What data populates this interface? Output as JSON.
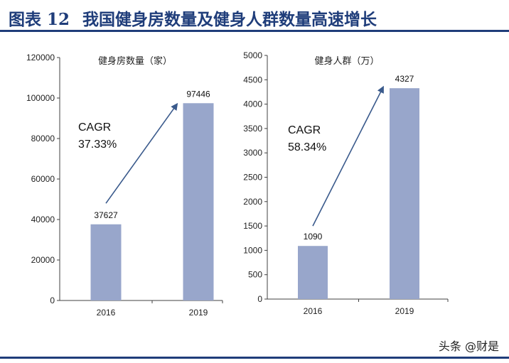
{
  "header": {
    "figure_label": "图表 12",
    "title": "我国健身房数量及健身人群数量高速增长"
  },
  "watermark": "头条 @财是",
  "colors": {
    "bar": "#98a6cb",
    "arrow": "#3a5a8c",
    "title_rule": "#1f3d7a",
    "axis": "#404040"
  },
  "chart_data": [
    {
      "type": "bar",
      "title": "健身房数量（家）",
      "categories": [
        "2016",
        "2019"
      ],
      "values": [
        37627,
        97446
      ],
      "data_labels": [
        "37627",
        "97446"
      ],
      "ylim": [
        0,
        120000
      ],
      "yticks": [
        0,
        20000,
        40000,
        60000,
        80000,
        100000,
        120000
      ],
      "ytick_labels": [
        "0",
        "20000",
        "40000",
        "60000",
        "80000",
        "100000",
        "120000"
      ],
      "annotation": {
        "line1": "CAGR",
        "line2": "37.33%"
      },
      "arrow": {
        "from": {
          "x": "2016",
          "y": 48000
        },
        "to": {
          "x": "2019",
          "y": 97000
        }
      },
      "grid": false
    },
    {
      "type": "bar",
      "title": "健身人群（万）",
      "categories": [
        "2016",
        "2019"
      ],
      "values": [
        1090,
        4327
      ],
      "data_labels": [
        "1090",
        "4327"
      ],
      "ylim": [
        0,
        5000
      ],
      "yticks": [
        0,
        500,
        1000,
        1500,
        2000,
        2500,
        3000,
        3500,
        4000,
        4500,
        5000
      ],
      "ytick_labels": [
        "0",
        "500",
        "1000",
        "1500",
        "2000",
        "2500",
        "3000",
        "3500",
        "4000",
        "4500",
        "5000"
      ],
      "annotation": {
        "line1": "CAGR",
        "line2": "58.34%"
      },
      "arrow": {
        "from": {
          "x": "2016",
          "y": 1500
        },
        "to": {
          "x": "2019",
          "y": 4350
        }
      },
      "grid": false
    }
  ]
}
